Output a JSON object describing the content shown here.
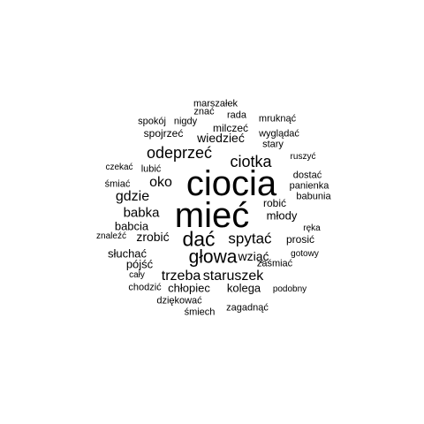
{
  "cloud": {
    "text_color": "#000000",
    "background": "#ffffff",
    "words": [
      "ciocia",
      "mieć",
      "dać",
      "głowa",
      "spytać",
      "ciotka",
      "odeprzeć",
      "oko",
      "gdzie",
      "babka",
      "trzeba",
      "staruszek",
      "wiedzieć",
      "zrobić",
      "wziąć",
      "chłopiec",
      "kolega",
      "młody",
      "robić",
      "babcia",
      "słuchać",
      "pójść",
      "prosić",
      "spojrzeć",
      "milczeć",
      "marszałek",
      "znać",
      "rada",
      "spokój",
      "nigdy",
      "mruknąć",
      "wyglądać",
      "stary",
      "ruszyć",
      "czekać",
      "lubić",
      "śmiać",
      "dostać",
      "panienka",
      "babunia",
      "znaleźć",
      "ręka",
      "gotowy",
      "zaśmiać",
      "cały",
      "chodzić",
      "podobny",
      "dziękować",
      "zagadnąć",
      "śmiech"
    ]
  }
}
